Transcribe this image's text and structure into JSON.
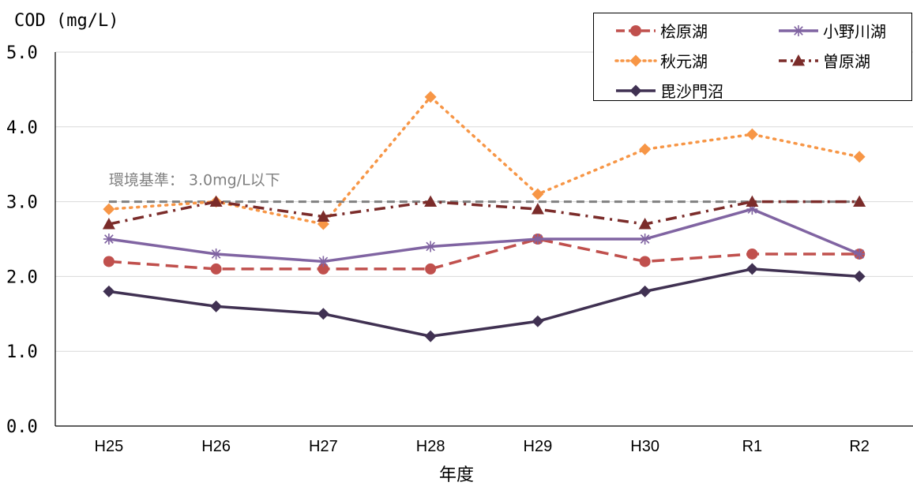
{
  "chart_data": {
    "type": "line",
    "ylabel": "COD (mg/L)",
    "xlabel": "年度",
    "categories": [
      "H25",
      "H26",
      "H27",
      "H28",
      "H29",
      "H30",
      "R1",
      "R2"
    ],
    "ylim": [
      0,
      5
    ],
    "yticks": [
      "0.0",
      "1.0",
      "2.0",
      "3.0",
      "4.0",
      "5.0"
    ],
    "grid": true,
    "legend_position": "top-right",
    "series": [
      {
        "name": "桧原湖",
        "values": [
          2.2,
          2.1,
          2.1,
          2.1,
          2.5,
          2.2,
          2.3,
          2.3
        ],
        "color": "#C0504D",
        "dash": "dashed",
        "marker": "circle"
      },
      {
        "name": "小野川湖",
        "values": [
          2.5,
          2.3,
          2.2,
          2.4,
          2.5,
          2.5,
          2.9,
          2.3
        ],
        "color": "#8064A2",
        "dash": "solid",
        "marker": "star"
      },
      {
        "name": "秋元湖",
        "values": [
          2.9,
          3.0,
          2.7,
          4.4,
          3.1,
          3.7,
          3.9,
          3.6
        ],
        "color": "#F79646",
        "dash": "dotted",
        "marker": "diamond"
      },
      {
        "name": "曽原湖",
        "values": [
          2.7,
          3.0,
          2.8,
          3.0,
          2.9,
          2.7,
          3.0,
          3.0
        ],
        "color": "#7B2C2A",
        "dash": "dashdot",
        "marker": "triangle"
      },
      {
        "name": "毘沙門沼",
        "values": [
          1.8,
          1.6,
          1.5,
          1.2,
          1.4,
          1.8,
          2.1,
          2.0
        ],
        "color": "#403152",
        "dash": "solid",
        "marker": "diamond"
      }
    ],
    "reference_line": {
      "value": 3.0,
      "label": "環境基準： 3.0mg/L以下",
      "color": "#808080"
    }
  }
}
